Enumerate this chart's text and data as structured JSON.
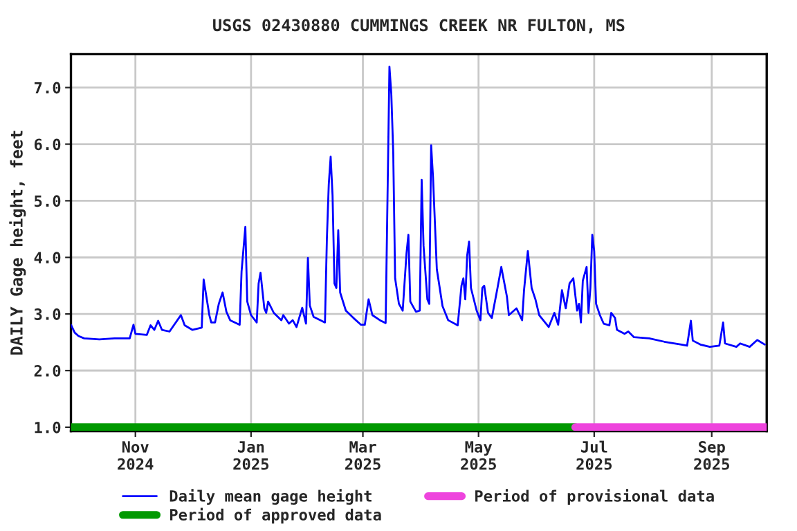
{
  "chart_data": {
    "type": "line",
    "title": "USGS 02430880 CUMMINGS CREEK NR FULTON, MS",
    "ylabel": "DAILY Gage height, feet",
    "xlim": [
      "2024-09-28",
      "2025-09-30"
    ],
    "xticks": [
      {
        "value": "2024-11-01",
        "label": "Nov\n2024"
      },
      {
        "value": "2025-01-01",
        "label": "Jan\n2025"
      },
      {
        "value": "2025-03-01",
        "label": "Mar\n2025"
      },
      {
        "value": "2025-05-01",
        "label": "May\n2025"
      },
      {
        "value": "2025-07-01",
        "label": "Jul\n2025"
      },
      {
        "value": "2025-09-01",
        "label": "Sep\n2025"
      }
    ],
    "ylim": [
      0.93,
      7.59
    ],
    "yticks": [
      {
        "value": 1,
        "label": "1.0"
      },
      {
        "value": 2,
        "label": "2.0"
      },
      {
        "value": 3,
        "label": "3.0"
      },
      {
        "value": 4,
        "label": "4.0"
      },
      {
        "value": 5,
        "label": "5.0"
      },
      {
        "value": 6,
        "label": "6.0"
      },
      {
        "value": 7,
        "label": "7.0"
      }
    ],
    "grid": true,
    "legend": "bottom",
    "marker": "none",
    "line_style": "solid",
    "series": [
      {
        "name": "Daily mean gage height",
        "color": "#0000ff",
        "x": [
          "2024-09-28",
          "2024-09-30",
          "2024-10-02",
          "2024-10-05",
          "2024-10-13",
          "2024-10-21",
          "2024-10-29",
          "2024-10-31",
          "2024-11-01",
          "2024-11-07",
          "2024-11-09",
          "2024-11-11",
          "2024-11-13",
          "2024-11-15",
          "2024-11-19",
          "2024-11-25",
          "2024-11-27",
          "2024-12-01",
          "2024-12-06",
          "2024-12-07",
          "2024-12-10",
          "2024-12-11",
          "2024-12-13",
          "2024-12-15",
          "2024-12-17",
          "2024-12-19",
          "2024-12-21",
          "2024-12-26",
          "2024-12-27",
          "2024-12-29",
          "2024-12-30",
          "2025-01-01",
          "2025-01-04",
          "2025-01-05",
          "2025-01-06",
          "2025-01-08",
          "2025-01-09",
          "2025-01-10",
          "2025-01-13",
          "2025-01-17",
          "2025-01-18",
          "2025-01-21",
          "2025-01-23",
          "2025-01-25",
          "2025-01-28",
          "2025-01-30",
          "2025-01-31",
          "2025-02-01",
          "2025-02-03",
          "2025-02-09",
          "2025-02-10",
          "2025-02-11",
          "2025-02-12",
          "2025-02-13",
          "2025-02-14",
          "2025-02-15",
          "2025-02-16",
          "2025-02-17",
          "2025-02-20",
          "2025-02-24",
          "2025-02-28",
          "2025-03-02",
          "2025-03-04",
          "2025-03-06",
          "2025-03-10",
          "2025-03-13",
          "2025-03-14",
          "2025-03-15",
          "2025-03-16",
          "2025-03-17",
          "2025-03-18",
          "2025-03-20",
          "2025-03-22",
          "2025-03-24",
          "2025-03-25",
          "2025-03-26",
          "2025-03-29",
          "2025-03-31",
          "2025-04-01",
          "2025-04-02",
          "2025-04-04",
          "2025-04-05",
          "2025-04-06",
          "2025-04-07",
          "2025-04-09",
          "2025-04-12",
          "2025-04-15",
          "2025-04-20",
          "2025-04-22",
          "2025-04-23",
          "2025-04-24",
          "2025-04-25",
          "2025-04-26",
          "2025-04-27",
          "2025-04-30",
          "2025-05-02",
          "2025-05-03",
          "2025-05-04",
          "2025-05-06",
          "2025-05-08",
          "2025-05-11",
          "2025-05-13",
          "2025-05-16",
          "2025-05-17",
          "2025-05-21",
          "2025-05-24",
          "2025-05-25",
          "2025-05-27",
          "2025-05-29",
          "2025-05-31",
          "2025-06-02",
          "2025-06-07",
          "2025-06-10",
          "2025-06-12",
          "2025-06-14",
          "2025-06-16",
          "2025-06-18",
          "2025-06-20",
          "2025-06-22",
          "2025-06-23",
          "2025-06-24",
          "2025-06-25",
          "2025-06-27",
          "2025-06-28",
          "2025-06-29",
          "2025-06-30",
          "2025-07-01",
          "2025-07-02",
          "2025-07-04",
          "2025-07-06",
          "2025-07-09",
          "2025-07-10",
          "2025-07-12",
          "2025-07-13",
          "2025-07-17",
          "2025-07-19",
          "2025-07-22",
          "2025-07-30",
          "2025-08-07",
          "2025-08-16",
          "2025-08-19",
          "2025-08-21",
          "2025-08-22",
          "2025-08-26",
          "2025-08-31",
          "2025-09-05",
          "2025-09-07",
          "2025-09-08",
          "2025-09-14",
          "2025-09-16",
          "2025-09-21",
          "2025-09-25",
          "2025-09-29"
        ],
        "values": [
          2.81,
          2.67,
          2.61,
          2.57,
          2.55,
          2.57,
          2.57,
          2.81,
          2.65,
          2.63,
          2.8,
          2.72,
          2.88,
          2.72,
          2.69,
          2.98,
          2.8,
          2.72,
          2.76,
          3.61,
          2.98,
          2.85,
          2.85,
          3.18,
          3.38,
          3.04,
          2.89,
          2.81,
          3.75,
          4.54,
          3.22,
          2.98,
          2.85,
          3.54,
          3.73,
          3.1,
          3.02,
          3.22,
          3.02,
          2.89,
          2.98,
          2.83,
          2.89,
          2.77,
          3.11,
          2.83,
          3.99,
          3.15,
          2.95,
          2.85,
          4.32,
          5.29,
          5.78,
          5.09,
          3.54,
          3.46,
          4.48,
          3.38,
          3.06,
          2.93,
          2.81,
          2.81,
          3.26,
          2.98,
          2.89,
          2.84,
          5.09,
          7.37,
          6.88,
          5.86,
          3.63,
          3.18,
          3.06,
          4.07,
          4.4,
          3.22,
          3.04,
          3.06,
          5.37,
          4.2,
          3.26,
          3.18,
          5.98,
          5.41,
          3.79,
          3.14,
          2.89,
          2.8,
          3.5,
          3.63,
          3.26,
          4.03,
          4.28,
          3.46,
          3.06,
          2.89,
          3.46,
          3.5,
          3.02,
          2.93,
          3.46,
          3.83,
          3.3,
          2.98,
          3.1,
          2.89,
          3.42,
          4.11,
          3.46,
          3.26,
          2.98,
          2.77,
          3.02,
          2.81,
          3.42,
          3.1,
          3.54,
          3.63,
          3.06,
          3.18,
          2.85,
          3.59,
          3.83,
          3.02,
          3.46,
          4.4,
          4.11,
          3.18,
          2.98,
          2.83,
          2.8,
          3.02,
          2.93,
          2.72,
          2.65,
          2.69,
          2.59,
          2.57,
          2.51,
          2.46,
          2.44,
          2.88,
          2.53,
          2.46,
          2.42,
          2.44,
          2.85,
          2.48,
          2.42,
          2.48,
          2.42,
          2.54,
          2.46
        ]
      },
      {
        "name": "Period of approved data",
        "color": "#009900",
        "x": [
          "2024-09-28",
          "2025-06-21"
        ],
        "values": [
          1.0,
          1.0
        ]
      },
      {
        "name": "Period of provisional data",
        "color": "#ee44dd",
        "x": [
          "2025-06-21",
          "2025-09-30"
        ],
        "values": [
          1.0,
          1.0
        ]
      }
    ]
  }
}
